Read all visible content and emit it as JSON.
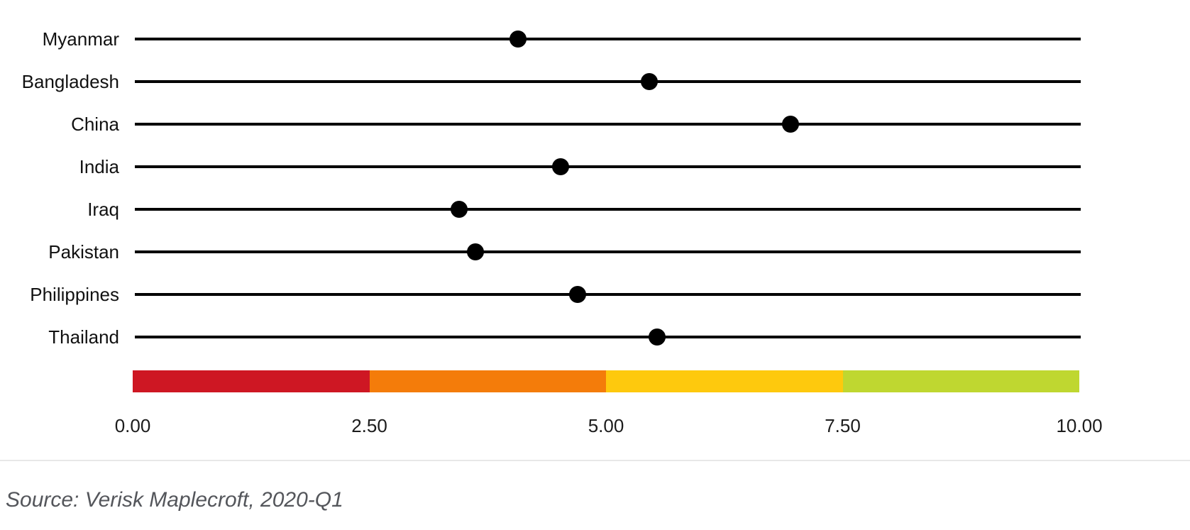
{
  "chart_data": {
    "type": "scatter",
    "subtype": "dot-strip-plot",
    "title": "",
    "categories": [
      "Myanmar",
      "Bangladesh",
      "China",
      "India",
      "Iraq",
      "Pakistan",
      "Philippines",
      "Thailand"
    ],
    "values": [
      4.05,
      5.44,
      6.93,
      4.5,
      3.43,
      3.6,
      4.68,
      5.52
    ],
    "xlabel": "",
    "ylabel": "",
    "xlim": [
      0,
      10
    ],
    "x_ticks": [
      {
        "label": "0.00",
        "value": 0
      },
      {
        "label": "2.50",
        "value": 2.5
      },
      {
        "label": "5.00",
        "value": 5
      },
      {
        "label": "7.50",
        "value": 7.5
      },
      {
        "label": "10.00",
        "value": 10
      }
    ],
    "grid": false,
    "legend_position": "none",
    "dot_color": "#000000",
    "line_color": "#000000",
    "scale_bands": [
      {
        "from": 0,
        "to": 2.5,
        "color": "#ce1723"
      },
      {
        "from": 2.5,
        "to": 5,
        "color": "#f47c0a"
      },
      {
        "from": 5,
        "to": 7.5,
        "color": "#fec90d"
      },
      {
        "from": 7.5,
        "to": 10,
        "color": "#bfd730"
      }
    ]
  },
  "source": {
    "text": "Source: Verisk Maplecroft, 2020-Q1"
  }
}
